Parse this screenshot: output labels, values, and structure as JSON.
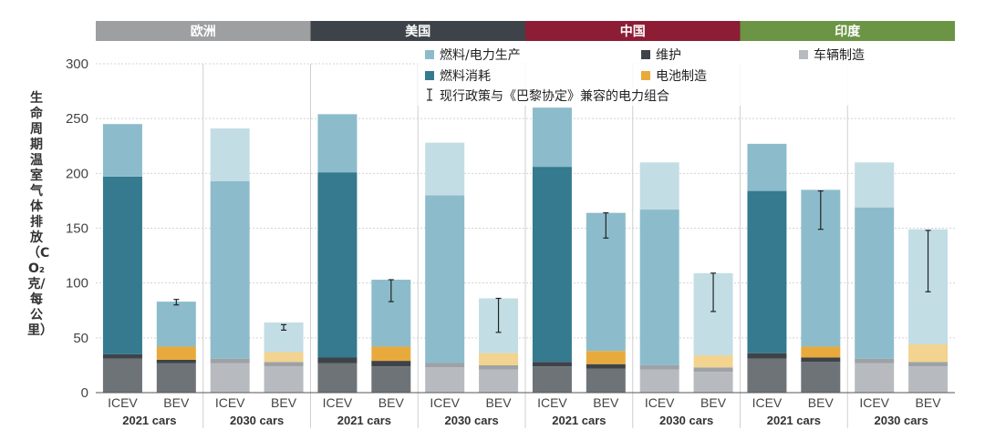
{
  "chart_data": {
    "type": "bar",
    "stacked": true,
    "ylabel": "生命周期温室气体排放（CO₂ 克/每公里）",
    "ylim": [
      0,
      300
    ],
    "yticks": [
      0,
      50,
      100,
      150,
      200,
      250,
      300
    ],
    "grid": true,
    "legend_position": "top",
    "legend": {
      "fuel_production": "燃料/电力生产",
      "fuel_consumption": "燃料消耗",
      "maintenance": "维护",
      "battery": "电池制造",
      "vehicle": "车辆制造",
      "error_bar": "现行政策与《巴黎协定》兼容的电力组合"
    },
    "colors": {
      "vehicle": "#6e7378",
      "vehicle_light": "#b7bbbf",
      "maintenance": "#3d4349",
      "maintenance_light": "#9ea2a6",
      "battery": "#e8aa3c",
      "battery_light": "#f2d38f",
      "fuel_consumption": "#357a8f",
      "fuel_production": "#8cbccb",
      "fuel_production_light": "#c3dde5",
      "region_eu": "#9d9fa1",
      "region_us": "#3d4349",
      "region_cn": "#8c1d35",
      "region_in": "#6b9545"
    },
    "regions": [
      {
        "name": "欧洲",
        "color_key": "region_eu"
      },
      {
        "name": "美国",
        "color_key": "region_us"
      },
      {
        "name": "中国",
        "color_key": "region_cn"
      },
      {
        "name": "印度",
        "color_key": "region_in"
      }
    ],
    "group_labels": [
      "2021 cars",
      "2030 cars"
    ],
    "car_labels": [
      "ICEV",
      "BEV"
    ],
    "bars": [
      {
        "region": 0,
        "group": 0,
        "car": "ICEV",
        "vehicle": 31,
        "maintenance": 4,
        "battery": 0,
        "fuel_consumption": 162,
        "fuel_production": 48
      },
      {
        "region": 0,
        "group": 0,
        "car": "BEV",
        "vehicle": 27,
        "maintenance": 3,
        "battery": 12,
        "fuel_consumption": 0,
        "fuel_production": 41,
        "err": [
          80,
          85
        ]
      },
      {
        "region": 0,
        "group": 1,
        "car": "ICEV",
        "vehicle": 27,
        "maintenance": 4,
        "battery": 0,
        "fuel_consumption": 0,
        "fuel_production": 161,
        "fp_split": 193,
        "total": 241
      },
      {
        "region": 0,
        "group": 1,
        "car": "BEV",
        "vehicle": 24,
        "maintenance": 4,
        "battery": 9,
        "fuel_consumption": 0,
        "fuel_production": 27,
        "err": [
          57,
          62
        ]
      },
      {
        "region": 1,
        "group": 0,
        "car": "ICEV",
        "vehicle": 27,
        "maintenance": 5,
        "battery": 0,
        "fuel_consumption": 169,
        "fuel_production": 53
      },
      {
        "region": 1,
        "group": 0,
        "car": "BEV",
        "vehicle": 24,
        "maintenance": 5,
        "battery": 13,
        "fuel_consumption": 0,
        "fuel_production": 61,
        "err": [
          83,
          103
        ]
      },
      {
        "region": 1,
        "group": 1,
        "car": "ICEV",
        "vehicle": 23,
        "maintenance": 4,
        "battery": 0,
        "fuel_consumption": 0,
        "fuel_production": 153,
        "fp_split": 180,
        "total": 228
      },
      {
        "region": 1,
        "group": 1,
        "car": "BEV",
        "vehicle": 21,
        "maintenance": 4,
        "battery": 11,
        "fuel_consumption": 0,
        "fuel_production": 50,
        "err": [
          55,
          86
        ]
      },
      {
        "region": 2,
        "group": 0,
        "car": "ICEV",
        "vehicle": 24,
        "maintenance": 4,
        "battery": 0,
        "fuel_consumption": 178,
        "fuel_production": 54
      },
      {
        "region": 2,
        "group": 0,
        "car": "BEV",
        "vehicle": 22,
        "maintenance": 4,
        "battery": 12,
        "fuel_consumption": 0,
        "fuel_production": 126,
        "err": [
          141,
          164
        ]
      },
      {
        "region": 2,
        "group": 1,
        "car": "ICEV",
        "vehicle": 21,
        "maintenance": 4,
        "battery": 0,
        "fuel_consumption": 0,
        "fuel_production": 142,
        "fp_split": 167,
        "total": 210
      },
      {
        "region": 2,
        "group": 1,
        "car": "BEV",
        "vehicle": 19,
        "maintenance": 4,
        "battery": 11,
        "fuel_consumption": 0,
        "fuel_production": 75,
        "err": [
          74,
          109
        ]
      },
      {
        "region": 3,
        "group": 0,
        "car": "ICEV",
        "vehicle": 31,
        "maintenance": 5,
        "battery": 0,
        "fuel_consumption": 148,
        "fuel_production": 43
      },
      {
        "region": 3,
        "group": 0,
        "car": "BEV",
        "vehicle": 28,
        "maintenance": 4,
        "battery": 10,
        "fuel_consumption": 0,
        "fuel_production": 143,
        "err": [
          149,
          184
        ]
      },
      {
        "region": 3,
        "group": 1,
        "car": "ICEV",
        "vehicle": 27,
        "maintenance": 4,
        "battery": 0,
        "fuel_consumption": 0,
        "fuel_production": 138,
        "fp_split": 169,
        "total": 210
      },
      {
        "region": 3,
        "group": 1,
        "car": "BEV",
        "vehicle": 24,
        "maintenance": 4,
        "battery": 16,
        "fuel_consumption": 0,
        "fuel_production": 105,
        "err": [
          92,
          148
        ]
      }
    ]
  }
}
